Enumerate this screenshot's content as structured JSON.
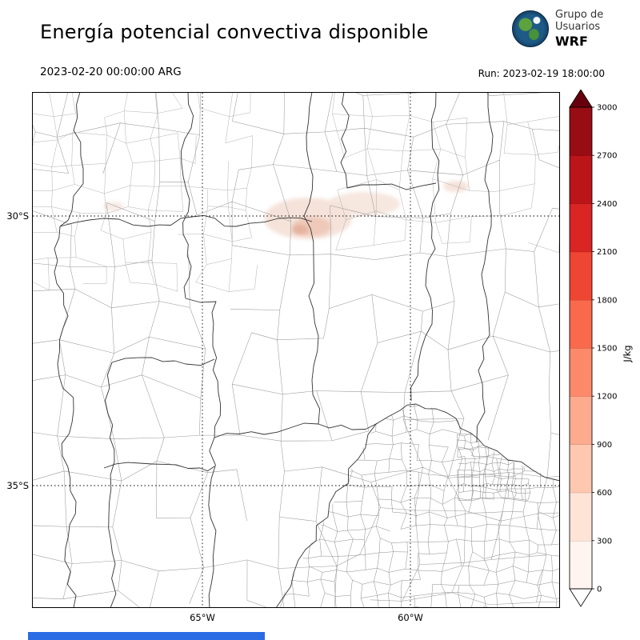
{
  "header": {
    "title": "Energía potencial convectiva disponible",
    "valid_time": "2023-02-20 00:00:00 ARG",
    "run_label": "Run: 2023-02-19 18:00:00",
    "logo": {
      "org_line1": "Grupo de",
      "org_line2": "Usuarios",
      "model": "WRF"
    }
  },
  "map": {
    "lat_labels": [
      "30°S",
      "35°S"
    ],
    "lon_labels": [
      "65°W",
      "60°W"
    ]
  },
  "colorbar": {
    "unit": "J/kg",
    "ticks_top_to_bottom": [
      "3000",
      "2700",
      "2400",
      "2100",
      "1800",
      "1500",
      "1200",
      "900",
      "600",
      "300",
      "0"
    ],
    "colors_bottom_to_top": [
      "#fff4ef",
      "#fee3d7",
      "#fdc7b0",
      "#fcab8f",
      "#fc8a6a",
      "#f9694c",
      "#ef4533",
      "#d92523",
      "#bb151a",
      "#980c13"
    ],
    "over_color": "#67000d",
    "under_color": "#ffffff"
  },
  "colors": {
    "footer_bar": "#2b6be4",
    "grid_line": "#000000",
    "patch_light": "#f5e3da",
    "patch_mid": "#eec9b9",
    "patch_core": "#e6b29e",
    "patch_faint": "#f7ebe5"
  },
  "chart_data": {
    "type": "heatmap",
    "title": "Energía potencial convectiva disponible",
    "field": "CAPE (convective available potential energy)",
    "units": "J/kg",
    "levels": [
      0,
      300,
      600,
      900,
      1200,
      1500,
      1800,
      2100,
      2400,
      2700,
      3000
    ],
    "colormap": "Reds",
    "colorbar_extends": "both",
    "x_ticks": [
      "65°W",
      "60°W"
    ],
    "y_ticks": [
      "30°S",
      "35°S"
    ],
    "valid_time": "2023-02-20 00:00:00 ARG",
    "run": "2023-02-19 18:00:00",
    "region": "central Argentina with province and department boundaries",
    "observed_values": "field ≈ 0 J/kg over almost all of the domain; weak patches ≈ 150–500 J/kg near 30°S between ~64°W and ~61°W and a small spot near 30°S 60.5°W"
  }
}
